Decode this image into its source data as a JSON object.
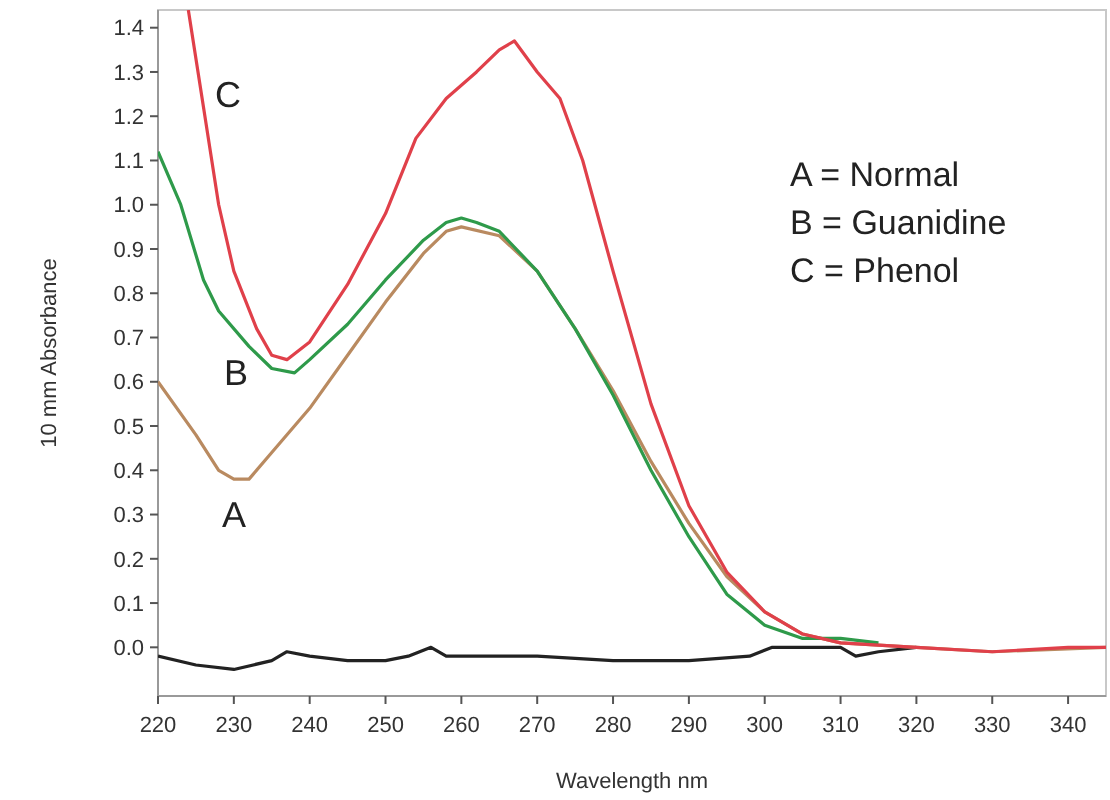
{
  "chart_data": {
    "type": "line",
    "xlabel": "Wavelength nm",
    "ylabel": "10 mm Absorbance",
    "xlim": [
      220,
      345
    ],
    "xticks": [
      220,
      230,
      240,
      250,
      260,
      270,
      280,
      290,
      300,
      310,
      320,
      330,
      340
    ],
    "ylim": [
      -0.11,
      1.44
    ],
    "yticks": [
      {
        "value": 0,
        "label": "0.0"
      },
      {
        "value": 0.1,
        "label": "0.1"
      },
      {
        "value": 0.2,
        "label": "0.2"
      },
      {
        "value": 0.3,
        "label": "0.3"
      },
      {
        "value": 0.4,
        "label": "0.4"
      },
      {
        "value": 0.5,
        "label": "0.5"
      },
      {
        "value": 0.6,
        "label": "0.6"
      },
      {
        "value": 0.7,
        "label": "0.7"
      },
      {
        "value": 0.8,
        "label": "0.8"
      },
      {
        "value": 0.9,
        "label": "0.9"
      },
      {
        "value": 1.0,
        "label": "1.0"
      },
      {
        "value": 1.1,
        "label": "1.1"
      },
      {
        "value": 1.2,
        "label": "1.2"
      },
      {
        "value": 1.3,
        "label": "1.3"
      },
      {
        "value": 1.4,
        "label": "1.4"
      }
    ],
    "grid": false,
    "marker": "none",
    "line_style": "solid",
    "series": [
      {
        "color": "#222222",
        "x": [
          220,
          225,
          230,
          235,
          237,
          240,
          245,
          250,
          253,
          256,
          258,
          270,
          280,
          290,
          298,
          301,
          310,
          312,
          315,
          320
        ],
        "values": [
          -0.02,
          -0.04,
          -0.05,
          -0.03,
          -0.01,
          -0.02,
          -0.03,
          -0.03,
          -0.02,
          0.0,
          -0.02,
          -0.02,
          -0.03,
          -0.03,
          -0.02,
          0.0,
          0.0,
          -0.02,
          -0.01,
          0.0
        ]
      },
      {
        "name": "A",
        "color": "#b98a60",
        "x": [
          220,
          225,
          228,
          230,
          232,
          235,
          240,
          245,
          250,
          255,
          258,
          260,
          265,
          270,
          275,
          280,
          285,
          290,
          295,
          300,
          305,
          310,
          320,
          330,
          345
        ],
        "values": [
          0.6,
          0.48,
          0.4,
          0.38,
          0.38,
          0.44,
          0.54,
          0.66,
          0.78,
          0.89,
          0.94,
          0.95,
          0.93,
          0.85,
          0.72,
          0.58,
          0.42,
          0.28,
          0.16,
          0.08,
          0.03,
          0.01,
          0.0,
          -0.01,
          0.0
        ]
      },
      {
        "name": "B",
        "color": "#2e9a4a",
        "x": [
          220,
          223,
          226,
          228,
          232,
          235,
          238,
          240,
          245,
          250,
          255,
          258,
          260,
          262,
          265,
          270,
          275,
          280,
          285,
          290,
          295,
          300,
          305,
          310,
          315
        ],
        "values": [
          1.12,
          1.0,
          0.83,
          0.76,
          0.68,
          0.63,
          0.62,
          0.65,
          0.73,
          0.83,
          0.92,
          0.96,
          0.97,
          0.96,
          0.94,
          0.85,
          0.72,
          0.57,
          0.4,
          0.25,
          0.12,
          0.05,
          0.02,
          0.02,
          0.01
        ]
      },
      {
        "name": "C",
        "color": "#e0404a",
        "x": [
          224,
          226,
          228,
          230,
          233,
          235,
          237,
          240,
          245,
          250,
          254,
          258,
          262,
          265,
          267,
          270,
          273,
          276,
          280,
          285,
          290,
          295,
          300,
          305,
          310,
          320,
          330,
          340,
          345
        ],
        "values": [
          1.44,
          1.22,
          1.0,
          0.85,
          0.72,
          0.66,
          0.65,
          0.69,
          0.82,
          0.98,
          1.15,
          1.24,
          1.3,
          1.35,
          1.37,
          1.3,
          1.24,
          1.1,
          0.85,
          0.55,
          0.32,
          0.17,
          0.08,
          0.03,
          0.01,
          0.0,
          -0.01,
          0.0,
          0.0
        ]
      }
    ],
    "annotations": [
      "A = Normal",
      "B = Guanidine",
      "C = Phenol"
    ]
  }
}
